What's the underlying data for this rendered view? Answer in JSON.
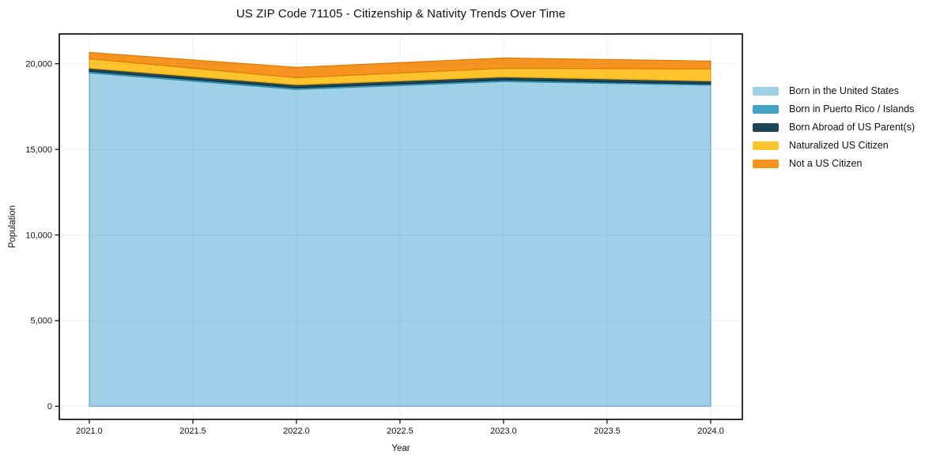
{
  "title": "US ZIP Code 71105 - Citizenship & Nativity Trends Over Time",
  "chart_data": {
    "type": "area",
    "stacked": true,
    "title": "US ZIP Code 71105 - Citizenship & Nativity Trends Over Time",
    "xlabel": "Year",
    "ylabel": "Population",
    "x": [
      2021,
      2022,
      2023,
      2024
    ],
    "series": [
      {
        "name": "Born in the United States",
        "color": "#9ed1e8",
        "edge": "#72aecb",
        "values": [
          19470,
          18500,
          18960,
          18750
        ]
      },
      {
        "name": "Born in Puerto Rico / Islands",
        "color": "#42a3c3",
        "edge": "#2d89a9",
        "values": [
          90,
          90,
          90,
          70
        ]
      },
      {
        "name": "Born Abroad of US Parent(s)",
        "color": "#1e4656",
        "edge": "#132f3b",
        "values": [
          180,
          180,
          180,
          180
        ]
      },
      {
        "name": "Naturalized US Citizen",
        "color": "#fdc42d",
        "edge": "#eaa90c",
        "values": [
          550,
          415,
          505,
          690
        ]
      },
      {
        "name": "Not a US Citizen",
        "color": "#f79420",
        "edge": "#e07c08",
        "values": [
          370,
          600,
          600,
          460
        ]
      }
    ],
    "x_ticks": [
      {
        "value": 2021.0,
        "label": "2021.0"
      },
      {
        "value": 2021.5,
        "label": "2021.5"
      },
      {
        "value": 2022.0,
        "label": "2022.0"
      },
      {
        "value": 2022.5,
        "label": "2022.5"
      },
      {
        "value": 2023.0,
        "label": "2023.0"
      },
      {
        "value": 2023.5,
        "label": "2023.5"
      },
      {
        "value": 2024.0,
        "label": "2024.0"
      }
    ],
    "y_ticks": [
      {
        "value": 0,
        "label": "0"
      },
      {
        "value": 5000,
        "label": "5,000"
      },
      {
        "value": 10000,
        "label": "10,000"
      },
      {
        "value": 15000,
        "label": "15,000"
      },
      {
        "value": 20000,
        "label": "20,000"
      }
    ],
    "xlim": [
      2020.855,
      2024.153
    ],
    "ylim": [
      -770,
      21738
    ],
    "grid": true,
    "legend_position": "right"
  }
}
